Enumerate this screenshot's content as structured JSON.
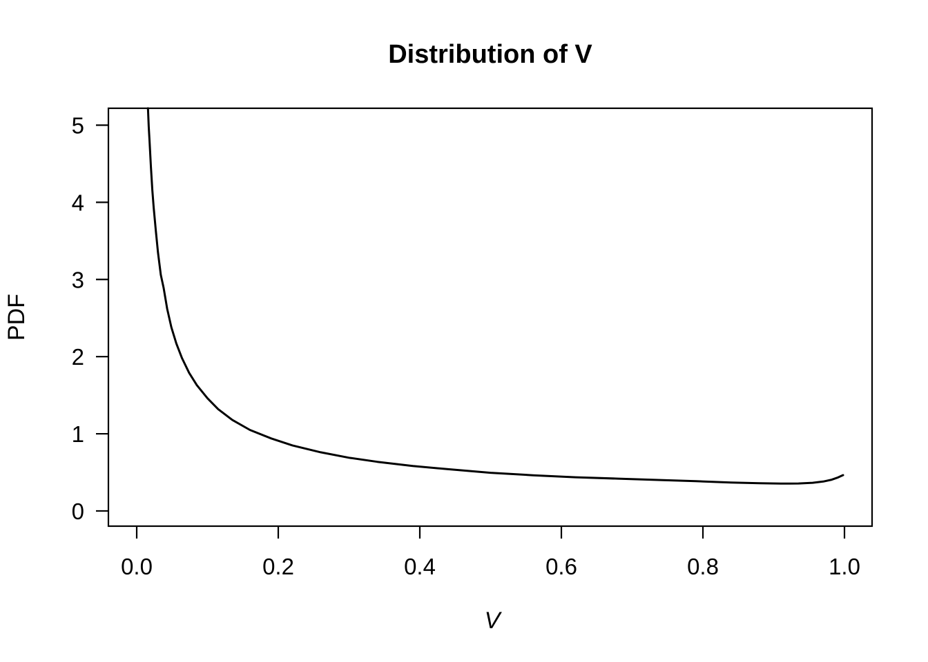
{
  "title": "Distribution of V",
  "chart_data": {
    "type": "line",
    "title": "Distribution of V",
    "xlabel": "V",
    "ylabel": "PDF",
    "xlim": [
      -0.04,
      1.039
    ],
    "ylim": [
      -0.197,
      5.219
    ],
    "x_ticks": [
      "0.0",
      "0.2",
      "0.4",
      "0.6",
      "0.8",
      "1.0"
    ],
    "x_tick_values": [
      0.0,
      0.2,
      0.4,
      0.6,
      0.8,
      1.0
    ],
    "y_ticks": [
      "0",
      "1",
      "2",
      "3",
      "4",
      "5"
    ],
    "y_tick_values": [
      0,
      1,
      2,
      3,
      4,
      5
    ],
    "grid": false,
    "legend": "none",
    "background": "#ffffff",
    "line_color": "#000000",
    "frame_color": "#000000",
    "series": [
      {
        "name": "pdf-of-v",
        "points": [
          [
            0.0159,
            5.219
          ],
          [
            0.017,
            4.98
          ],
          [
            0.018,
            4.81
          ],
          [
            0.02,
            4.47
          ],
          [
            0.022,
            4.16
          ],
          [
            0.024,
            3.93
          ],
          [
            0.027,
            3.63
          ],
          [
            0.03,
            3.35
          ],
          [
            0.034,
            3.06
          ],
          [
            0.038,
            2.89
          ],
          [
            0.043,
            2.62
          ],
          [
            0.049,
            2.38
          ],
          [
            0.056,
            2.17
          ],
          [
            0.064,
            1.98
          ],
          [
            0.074,
            1.79
          ],
          [
            0.085,
            1.63
          ],
          [
            0.1,
            1.46
          ],
          [
            0.115,
            1.32
          ],
          [
            0.135,
            1.18
          ],
          [
            0.16,
            1.05
          ],
          [
            0.19,
            0.94
          ],
          [
            0.22,
            0.85
          ],
          [
            0.26,
            0.76
          ],
          [
            0.3,
            0.69
          ],
          [
            0.34,
            0.637
          ],
          [
            0.39,
            0.583
          ],
          [
            0.44,
            0.541
          ],
          [
            0.5,
            0.495
          ],
          [
            0.56,
            0.463
          ],
          [
            0.62,
            0.437
          ],
          [
            0.68,
            0.419
          ],
          [
            0.74,
            0.401
          ],
          [
            0.79,
            0.386
          ],
          [
            0.84,
            0.369
          ],
          [
            0.88,
            0.359
          ],
          [
            0.91,
            0.354
          ],
          [
            0.935,
            0.356
          ],
          [
            0.955,
            0.365
          ],
          [
            0.97,
            0.381
          ],
          [
            0.982,
            0.405
          ],
          [
            0.99,
            0.431
          ],
          [
            0.995,
            0.452
          ],
          [
            0.998,
            0.464
          ]
        ]
      }
    ]
  }
}
